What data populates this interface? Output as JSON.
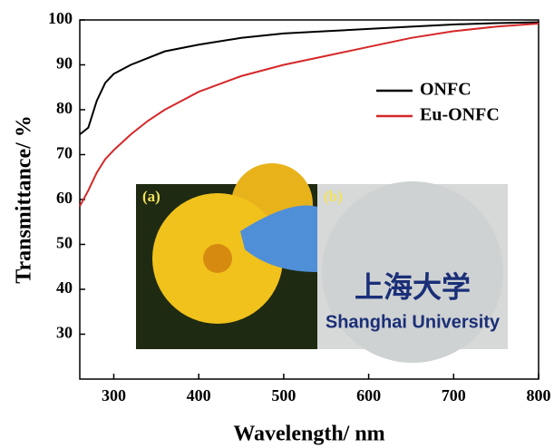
{
  "chart_data": {
    "type": "line",
    "x_label": "Wavelength/ nm",
    "y_label": "Transmittance/ %",
    "series": [
      {
        "name": "ONFC",
        "color": "#000000",
        "x": [
          260,
          270,
          280,
          290,
          300,
          320,
          340,
          360,
          400,
          450,
          500,
          550,
          600,
          650,
          700,
          750,
          800
        ],
        "values": [
          74.5,
          76,
          82,
          86,
          88,
          90,
          91.5,
          93,
          94.5,
          96,
          97,
          97.5,
          98,
          98.5,
          99,
          99.3,
          99.5
        ]
      },
      {
        "name": "Eu-ONFC",
        "color": "#d62728",
        "x": [
          260,
          270,
          280,
          290,
          300,
          320,
          340,
          360,
          380,
          400,
          450,
          500,
          550,
          600,
          650,
          700,
          750,
          800
        ],
        "values": [
          58.5,
          62,
          66,
          69,
          71,
          74.5,
          77.5,
          80,
          82,
          84,
          87.5,
          90,
          92,
          94,
          96,
          97.5,
          98.5,
          99.2
        ]
      }
    ],
    "xlim": [
      260,
      800
    ],
    "ylim": [
      20,
      100
    ],
    "xticks": [
      300,
      400,
      500,
      600,
      700,
      800
    ],
    "yticks": [
      30,
      40,
      50,
      60,
      70,
      80,
      90,
      100
    ],
    "legend": "upper-right",
    "insets": [
      {
        "label": "(a)"
      },
      {
        "label": "(b)",
        "texts": [
          "上海大学",
          "Shanghai University"
        ]
      }
    ]
  }
}
